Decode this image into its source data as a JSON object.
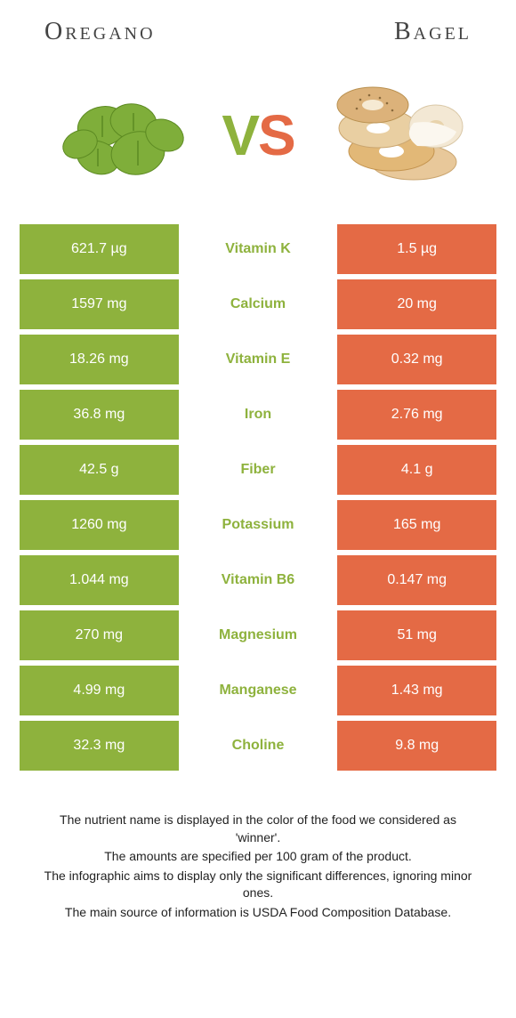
{
  "colors": {
    "left": "#8eb23d",
    "right": "#e46a45",
    "bg": "#ffffff",
    "text": "#333333"
  },
  "fonts": {
    "title_family": "Georgia",
    "title_size_pt": 21,
    "cell_family": "Arial",
    "cell_size_pt": 12,
    "vs_size_pt": 48,
    "footer_size_pt": 10
  },
  "header": {
    "left_title": "Oregano",
    "right_title": "Bagel",
    "vs_v": "V",
    "vs_s": "S",
    "left_image": "oregano-leaves",
    "right_image": "bagels-with-cream-cheese"
  },
  "rows": [
    {
      "label": "Vitamin K",
      "left": "621.7 µg",
      "right": "1.5 µg",
      "winner": "left"
    },
    {
      "label": "Calcium",
      "left": "1597 mg",
      "right": "20 mg",
      "winner": "left"
    },
    {
      "label": "Vitamin E",
      "left": "18.26 mg",
      "right": "0.32 mg",
      "winner": "left"
    },
    {
      "label": "Iron",
      "left": "36.8 mg",
      "right": "2.76 mg",
      "winner": "left"
    },
    {
      "label": "Fiber",
      "left": "42.5 g",
      "right": "4.1 g",
      "winner": "left"
    },
    {
      "label": "Potassium",
      "left": "1260 mg",
      "right": "165 mg",
      "winner": "left"
    },
    {
      "label": "Vitamin B6",
      "left": "1.044 mg",
      "right": "0.147 mg",
      "winner": "left"
    },
    {
      "label": "Magnesium",
      "left": "270 mg",
      "right": "51 mg",
      "winner": "left"
    },
    {
      "label": "Manganese",
      "left": "4.99 mg",
      "right": "1.43 mg",
      "winner": "left"
    },
    {
      "label": "Choline",
      "left": "32.3 mg",
      "right": "9.8 mg",
      "winner": "left"
    }
  ],
  "footer": {
    "l1": "The nutrient name is displayed in the color of the food we considered as 'winner'.",
    "l2": "The amounts are specified per 100 gram of the product.",
    "l3": "The infographic aims to display only the significant differences, ignoring minor ones.",
    "l4": "The main source of information is USDA Food Composition Database."
  }
}
